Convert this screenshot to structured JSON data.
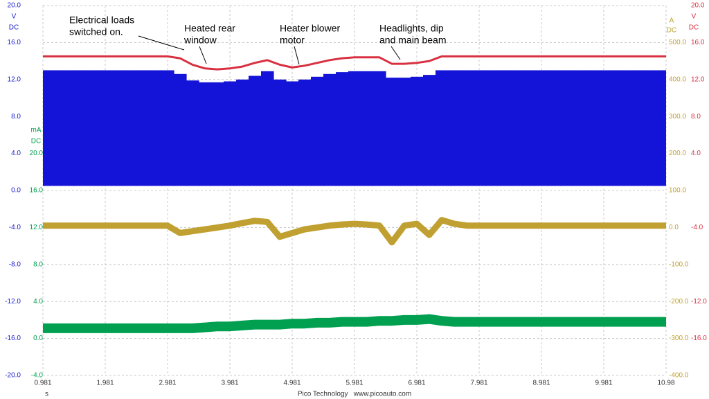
{
  "chart_data": {
    "type": "line",
    "x": [
      0.981,
      1.181,
      1.381,
      1.581,
      1.781,
      1.981,
      2.181,
      2.381,
      2.581,
      2.781,
      2.981,
      3.181,
      3.381,
      3.581,
      3.781,
      3.981,
      4.181,
      4.381,
      4.581,
      4.781,
      4.981,
      5.181,
      5.381,
      5.581,
      5.781,
      5.981,
      6.181,
      6.381,
      6.581,
      6.781,
      6.981,
      7.181,
      7.381,
      7.581,
      7.781,
      7.981,
      8.181,
      8.381,
      8.581,
      8.781,
      8.981,
      9.181,
      9.381,
      9.581,
      9.781,
      9.981,
      10.181,
      10.381,
      10.581,
      10.781,
      10.981
    ],
    "xlim": [
      0.981,
      10.981
    ],
    "xticks": [
      0.981,
      1.981,
      2.981,
      3.981,
      4.981,
      5.981,
      6.981,
      7.981,
      8.981,
      9.981,
      {
        "value": 10.981,
        "label": "10.98"
      }
    ],
    "xlabel": "s",
    "footer": "Pico Technology   www.picoauto.com",
    "grid": true,
    "axes": [
      {
        "side": "left",
        "color": "#1a1ad0",
        "unit": [
          "V",
          "DC"
        ],
        "lim": [
          -20,
          20
        ],
        "ticks": [
          {
            "value": 20,
            "label": "20.0"
          },
          {
            "value": 16,
            "label": "16.0"
          },
          {
            "value": 12,
            "label": "12.0"
          },
          {
            "value": 8,
            "label": "8.0"
          },
          {
            "value": 4,
            "label": "4.0"
          },
          {
            "value": 0,
            "label": "0.0"
          },
          {
            "value": -4,
            "label": "-4.0"
          },
          {
            "value": -8,
            "label": "-8.0"
          },
          {
            "value": -12,
            "label": "-12.0"
          },
          {
            "value": -16,
            "label": "-16.0"
          },
          {
            "value": -20,
            "label": "-20.0"
          }
        ]
      },
      {
        "side": "left",
        "color": "#00a050",
        "unit": [
          "mA",
          "DC"
        ],
        "lim": [
          -4,
          36
        ],
        "ticks": [
          {
            "value": 20,
            "label": "20.0"
          },
          {
            "value": 16,
            "label": "16.0"
          },
          {
            "value": 12,
            "label": "12.0"
          },
          {
            "value": 8,
            "label": "8.0"
          },
          {
            "value": 4,
            "label": "4.0"
          },
          {
            "value": 0,
            "label": "0.0"
          },
          {
            "value": -4,
            "label": "-4.0"
          }
        ]
      },
      {
        "side": "right",
        "color": "#c0a030",
        "unit": [
          "A",
          "DC"
        ],
        "lim": [
          -400,
          600
        ],
        "ticks": [
          {
            "value": 500,
            "label": "500.0"
          },
          {
            "value": 400,
            "label": "400.0"
          },
          {
            "value": 300,
            "label": "300.0"
          },
          {
            "value": 200,
            "label": "200.0"
          },
          {
            "value": 100,
            "label": "100.0"
          },
          {
            "value": 0,
            "label": "0.0"
          },
          {
            "value": -100,
            "label": "-100.0"
          },
          {
            "value": -200,
            "label": "-200.0"
          },
          {
            "value": -300,
            "label": "-300.0"
          },
          {
            "value": -400,
            "label": "-400.0"
          }
        ]
      },
      {
        "side": "right",
        "color": "#d83040",
        "unit": [
          "V",
          "DC"
        ],
        "lim": [
          -20,
          20
        ],
        "ticks": [
          {
            "value": 20,
            "label": "20.0"
          },
          {
            "value": 16,
            "label": "16.0"
          },
          {
            "value": 12,
            "label": "12.0"
          },
          {
            "value": 8,
            "label": "8.0"
          },
          {
            "value": 4,
            "label": "4.0"
          },
          {
            "value": -4,
            "label": "-4.0"
          },
          {
            "value": -12,
            "label": "-12.0"
          },
          {
            "value": -16,
            "label": "-16.0"
          }
        ]
      }
    ],
    "series": [
      {
        "axis": 0,
        "style": "band",
        "color": "#1414d8",
        "values": [
          13.0,
          13.0,
          13.0,
          13.0,
          13.0,
          13.0,
          13.0,
          13.0,
          13.0,
          13.0,
          13.0,
          12.6,
          11.9,
          11.7,
          11.7,
          11.8,
          12.0,
          12.4,
          12.9,
          12.0,
          11.8,
          12.0,
          12.3,
          12.6,
          12.8,
          12.9,
          12.9,
          12.9,
          12.2,
          12.2,
          12.3,
          12.5,
          13.0,
          13.0,
          13.0,
          13.0,
          13.0,
          13.0,
          13.0,
          13.0,
          13.0,
          13.0,
          13.0,
          13.0,
          13.0,
          13.0,
          13.0,
          13.0,
          13.0,
          13.0,
          13.0
        ],
        "low": [
          0.5,
          0.5,
          0.5,
          0.5,
          0.5,
          0.5,
          0.5,
          0.5,
          0.5,
          0.5,
          0.5,
          0.5,
          0.5,
          0.5,
          0.5,
          0.5,
          0.5,
          0.5,
          0.5,
          0.5,
          0.5,
          0.5,
          0.5,
          0.5,
          0.5,
          0.5,
          0.5,
          0.5,
          0.5,
          0.5,
          0.5,
          0.5,
          0.5,
          0.5,
          0.5,
          0.5,
          0.5,
          0.5,
          0.5,
          0.5,
          0.5,
          0.5,
          0.5,
          0.5,
          0.5,
          0.5,
          0.5,
          0.5,
          0.5,
          0.5,
          0.5
        ]
      },
      {
        "axis": 3,
        "style": "line",
        "color": "#d83040",
        "values": [
          14.5,
          14.5,
          14.5,
          14.5,
          14.5,
          14.5,
          14.5,
          14.5,
          14.5,
          14.5,
          14.5,
          14.3,
          13.6,
          13.2,
          13.1,
          13.2,
          13.4,
          13.8,
          14.1,
          13.6,
          13.3,
          13.5,
          13.8,
          14.1,
          14.3,
          14.4,
          14.4,
          14.4,
          13.7,
          13.7,
          13.8,
          14.0,
          14.5,
          14.5,
          14.5,
          14.5,
          14.5,
          14.5,
          14.5,
          14.5,
          14.5,
          14.5,
          14.5,
          14.5,
          14.5,
          14.5,
          14.5,
          14.5,
          14.5,
          14.5,
          14.5
        ]
      },
      {
        "axis": 2,
        "style": "line",
        "color": "#c0a030",
        "values": [
          5,
          5,
          5,
          5,
          5,
          5,
          5,
          5,
          5,
          5,
          5,
          -15,
          -10,
          -5,
          0,
          5,
          12,
          18,
          15,
          -25,
          -15,
          -5,
          0,
          5,
          8,
          10,
          8,
          5,
          -40,
          5,
          10,
          -20,
          20,
          10,
          5,
          5,
          5,
          5,
          5,
          5,
          5,
          5,
          5,
          5,
          5,
          5,
          5,
          5,
          5,
          5,
          5
        ]
      },
      {
        "axis": 1,
        "style": "line",
        "color": "#00a050",
        "values": [
          1.1,
          1.1,
          1.1,
          1.1,
          1.1,
          1.1,
          1.1,
          1.1,
          1.1,
          1.1,
          1.1,
          1.1,
          1.1,
          1.2,
          1.3,
          1.3,
          1.4,
          1.5,
          1.5,
          1.5,
          1.6,
          1.6,
          1.7,
          1.7,
          1.8,
          1.8,
          1.8,
          1.9,
          1.9,
          2.0,
          2.0,
          2.1,
          1.9,
          1.8,
          1.8,
          1.8,
          1.8,
          1.8,
          1.8,
          1.8,
          1.8,
          1.8,
          1.8,
          1.8,
          1.8,
          1.8,
          1.8,
          1.8,
          1.8,
          1.8,
          1.8
        ]
      }
    ],
    "annotations": [
      {
        "lines": [
          "Electrical loads",
          "switched on."
        ]
      },
      {
        "lines": [
          "Heated rear",
          "window"
        ]
      },
      {
        "lines": [
          "Heater blower",
          "motor"
        ]
      },
      {
        "lines": [
          "Headlights, dip",
          "and main beam"
        ]
      }
    ]
  }
}
